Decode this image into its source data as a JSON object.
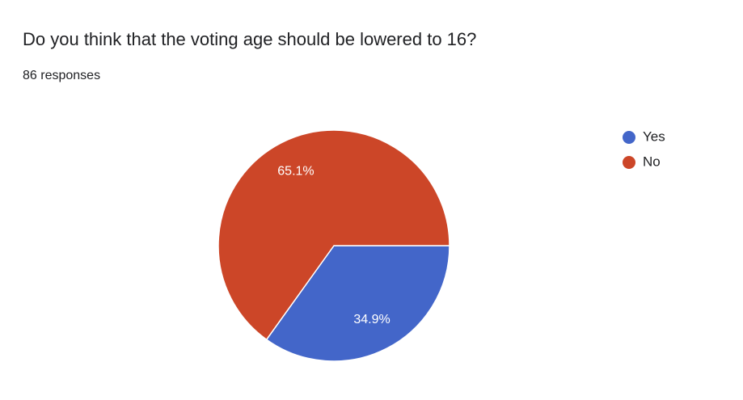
{
  "chart_data": {
    "type": "pie",
    "title": "Do you think that the voting age should be lowered to 16?",
    "subtitle": "86 responses",
    "categories": [
      "Yes",
      "No"
    ],
    "values": [
      34.9,
      65.1
    ],
    "value_labels": [
      "34.9%",
      "65.1%"
    ],
    "colors": [
      "#4366c9",
      "#cc4628"
    ],
    "legend": "right"
  }
}
